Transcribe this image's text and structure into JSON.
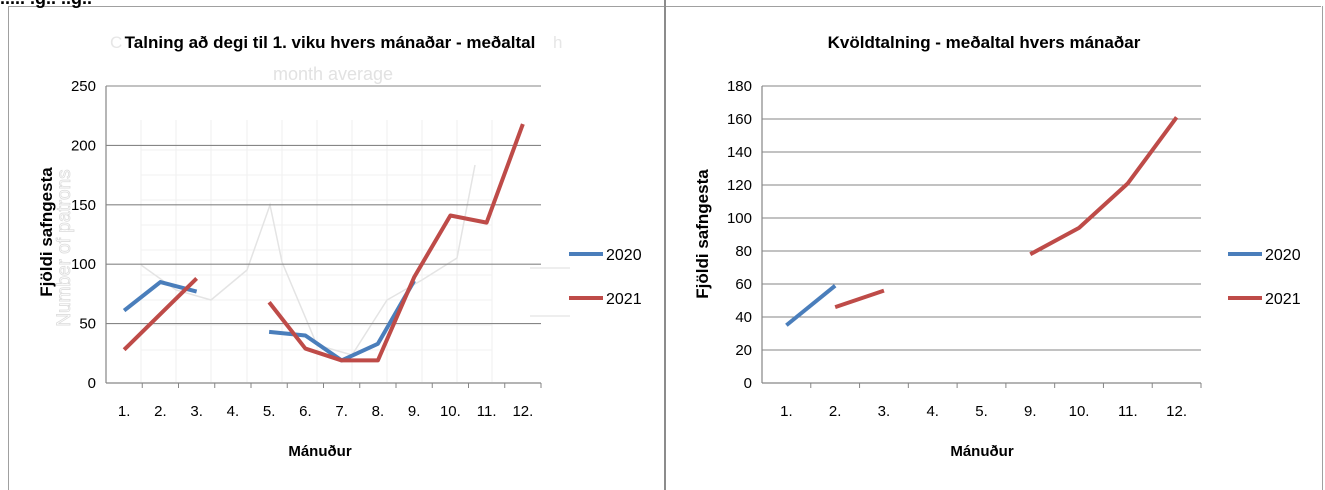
{
  "page": {
    "heading_fragment": "..... .g.. ..g..",
    "bg": "#ffffff"
  },
  "colors": {
    "series_2020": "#4a7ebb",
    "series_2021": "#be4b48",
    "grid": "#868686",
    "text": "#000000"
  },
  "chart_data": [
    {
      "type": "line",
      "title": "Talning að degi til 1. viku hvers mánaðar - meðaltal",
      "ghost_title_1": "C",
      "ghost_title_2": "h",
      "ghost_title_3": "month   average",
      "xlabel": "Mánuður",
      "ylabel": "Fjöldi safngesta",
      "ghost_ylabel": "Number of patrons",
      "categories": [
        "1.",
        "2.",
        "3.",
        "4.",
        "5.",
        "6.",
        "7.",
        "8.",
        "9.",
        "10.",
        "11.",
        "12."
      ],
      "ylim": [
        0,
        250
      ],
      "yticks": [
        0,
        50,
        100,
        150,
        200,
        250
      ],
      "grid": true,
      "legend_position": "right",
      "series": [
        {
          "name": "2020",
          "values": [
            61,
            85,
            77,
            null,
            43,
            40,
            19,
            33,
            86,
            null,
            null,
            null
          ]
        },
        {
          "name": "2021",
          "values": [
            28,
            58,
            88,
            null,
            68,
            29,
            19,
            19,
            89,
            141,
            135,
            218
          ]
        }
      ]
    },
    {
      "type": "line",
      "title": "Kvöldtalning - meðaltal hvers mánaðar",
      "xlabel": "Mánuður",
      "ylabel": "Fjöldi safngesta",
      "categories": [
        "1.",
        "2.",
        "3.",
        "4.",
        "5.",
        "9.",
        "10.",
        "11.",
        "12."
      ],
      "ylim": [
        0,
        180
      ],
      "yticks": [
        0,
        20,
        40,
        60,
        80,
        100,
        120,
        140,
        160,
        180
      ],
      "grid": true,
      "legend_position": "right",
      "series": [
        {
          "name": "2020",
          "values": [
            35,
            59,
            null,
            null,
            null,
            null,
            null,
            null,
            null
          ]
        },
        {
          "name": "2021",
          "values": [
            null,
            46,
            56,
            null,
            null,
            78,
            94,
            121,
            161
          ]
        }
      ]
    }
  ]
}
